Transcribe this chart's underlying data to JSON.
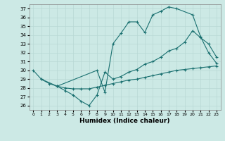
{
  "xlabel": "Humidex (Indice chaleur)",
  "bg_color": "#cce9e5",
  "line_color": "#1a7070",
  "grid_color": "#b8d8d5",
  "xlim": [
    -0.5,
    23.5
  ],
  "ylim": [
    25.5,
    37.5
  ],
  "yticks": [
    26,
    27,
    28,
    29,
    30,
    31,
    32,
    33,
    34,
    35,
    36,
    37
  ],
  "xticks": [
    0,
    1,
    2,
    3,
    4,
    5,
    6,
    7,
    8,
    9,
    10,
    11,
    12,
    13,
    14,
    15,
    16,
    17,
    18,
    19,
    20,
    21,
    22,
    23
  ],
  "line1_x": [
    0,
    1,
    3,
    8,
    9,
    10,
    11,
    12,
    13,
    14,
    15,
    16,
    17,
    18,
    20,
    21,
    22,
    23
  ],
  "line1_y": [
    30.0,
    29.0,
    28.2,
    30.0,
    27.5,
    33.0,
    34.2,
    35.5,
    35.5,
    34.3,
    36.3,
    36.7,
    37.2,
    37.0,
    36.3,
    33.8,
    32.0,
    30.8
  ],
  "line2_x": [
    3,
    4,
    5,
    6,
    7,
    8,
    9,
    10,
    11,
    12,
    13,
    14,
    15,
    16,
    17,
    18,
    19,
    20,
    21,
    22,
    23
  ],
  "line2_y": [
    28.2,
    27.7,
    27.2,
    26.5,
    26.0,
    27.2,
    29.8,
    29.0,
    29.3,
    29.8,
    30.1,
    30.7,
    31.0,
    31.5,
    32.2,
    32.5,
    33.2,
    34.5,
    33.7,
    33.0,
    31.5
  ],
  "line3_x": [
    1,
    2,
    3,
    4,
    5,
    6,
    7,
    8,
    9,
    10,
    11,
    12,
    13,
    14,
    15,
    16,
    17,
    18,
    19,
    20,
    21,
    22,
    23
  ],
  "line3_y": [
    29.0,
    28.5,
    28.2,
    28.0,
    27.9,
    27.9,
    27.9,
    28.1,
    28.3,
    28.5,
    28.7,
    28.9,
    29.0,
    29.2,
    29.4,
    29.6,
    29.8,
    30.0,
    30.1,
    30.2,
    30.3,
    30.4,
    30.5
  ]
}
